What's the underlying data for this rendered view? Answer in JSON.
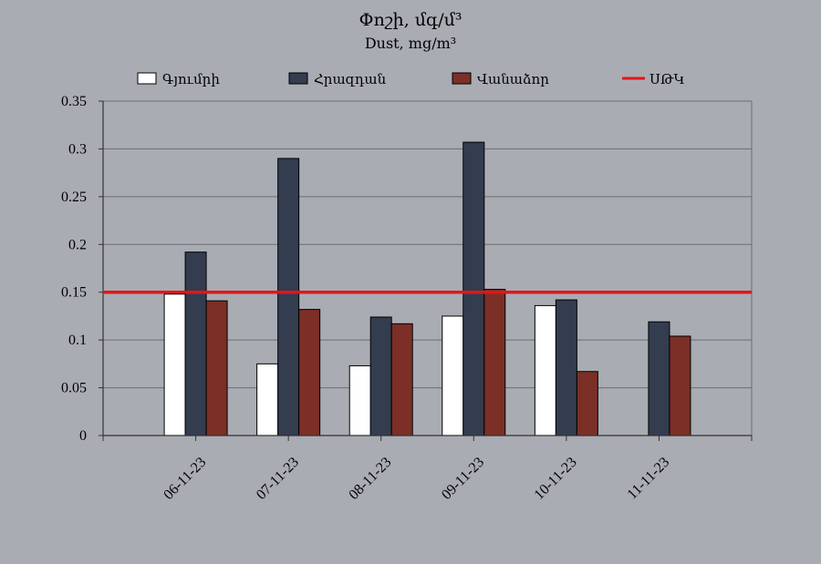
{
  "chart_data": {
    "type": "bar",
    "title": "Փոշի, մգ/մ³",
    "subtitle": "Dust, mg/m³",
    "categories": [
      "06-11-23",
      "07-11-23",
      "08-11-23",
      "09-11-23",
      "10-11-23",
      "11-11-23"
    ],
    "series": [
      {
        "name": "Գյումրի",
        "color": "#ffffff",
        "values": [
          0.148,
          0.075,
          0.073,
          0.125,
          0.136,
          null
        ]
      },
      {
        "name": "Հրազդան",
        "color": "#333d4f",
        "values": [
          0.192,
          0.29,
          0.124,
          0.307,
          0.142,
          0.119
        ]
      },
      {
        "name": "Վանաձոր",
        "color": "#7b2f26",
        "values": [
          0.141,
          0.132,
          0.117,
          0.153,
          0.067,
          0.104
        ]
      }
    ],
    "reference_line": {
      "name": "ՍԹԿ",
      "value": 0.15,
      "color": "#e0161b"
    },
    "ylim": [
      0,
      0.35
    ],
    "yticks": [
      "0",
      "0.05",
      "0.1",
      "0.15",
      "0.2",
      "0.25",
      "0.3",
      "0.35"
    ],
    "grid": true,
    "legend_position": "top"
  }
}
